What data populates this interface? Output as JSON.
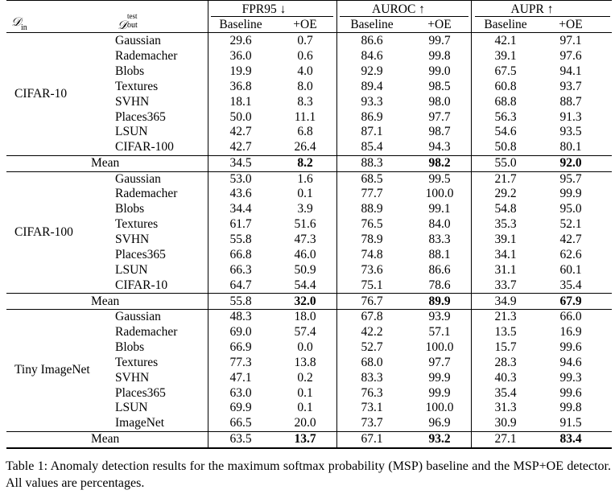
{
  "header": {
    "din_symbol": "𝒟",
    "din_sub": "in",
    "dout_symbol": "𝒟",
    "dout_sup": "test",
    "dout_sub": "out",
    "metrics": [
      {
        "label": "FPR95 ↓"
      },
      {
        "label": "AUROC ↑"
      },
      {
        "label": "AUPR ↑"
      }
    ],
    "sub_labels": [
      "Baseline",
      "+OE"
    ]
  },
  "blocks": [
    {
      "dataset": "CIFAR-10",
      "rows": [
        {
          "name": "Gaussian",
          "values": [
            "29.6",
            "0.7",
            "86.6",
            "99.7",
            "42.1",
            "97.1"
          ]
        },
        {
          "name": "Rademacher",
          "values": [
            "36.0",
            "0.6",
            "84.6",
            "99.8",
            "39.1",
            "97.6"
          ]
        },
        {
          "name": "Blobs",
          "values": [
            "19.9",
            "4.0",
            "92.9",
            "99.0",
            "67.5",
            "94.1"
          ]
        },
        {
          "name": "Textures",
          "values": [
            "36.8",
            "8.0",
            "89.4",
            "98.5",
            "60.8",
            "93.7"
          ]
        },
        {
          "name": "SVHN",
          "values": [
            "18.1",
            "8.3",
            "93.3",
            "98.0",
            "68.8",
            "88.7"
          ]
        },
        {
          "name": "Places365",
          "values": [
            "50.0",
            "11.1",
            "86.9",
            "97.7",
            "56.3",
            "91.3"
          ]
        },
        {
          "name": "LSUN",
          "values": [
            "42.7",
            "6.8",
            "87.1",
            "98.7",
            "54.6",
            "93.5"
          ]
        },
        {
          "name": "CIFAR-100",
          "values": [
            "42.7",
            "26.4",
            "85.4",
            "94.3",
            "50.8",
            "80.1"
          ]
        }
      ],
      "mean": {
        "label": "Mean",
        "values": [
          "34.5",
          "8.2",
          "88.3",
          "98.2",
          "55.0",
          "92.0"
        ]
      }
    },
    {
      "dataset": "CIFAR-100",
      "rows": [
        {
          "name": "Gaussian",
          "values": [
            "53.0",
            "1.6",
            "68.5",
            "99.5",
            "21.7",
            "95.7"
          ]
        },
        {
          "name": "Rademacher",
          "values": [
            "43.6",
            "0.1",
            "77.7",
            "100.0",
            "29.2",
            "99.9"
          ]
        },
        {
          "name": "Blobs",
          "values": [
            "34.4",
            "3.9",
            "88.9",
            "99.1",
            "54.8",
            "95.0"
          ]
        },
        {
          "name": "Textures",
          "values": [
            "61.7",
            "51.6",
            "76.5",
            "84.0",
            "35.3",
            "52.1"
          ]
        },
        {
          "name": "SVHN",
          "values": [
            "55.8",
            "47.3",
            "78.9",
            "83.3",
            "39.1",
            "42.7"
          ]
        },
        {
          "name": "Places365",
          "values": [
            "66.8",
            "46.0",
            "74.8",
            "88.1",
            "34.1",
            "62.6"
          ]
        },
        {
          "name": "LSUN",
          "values": [
            "66.3",
            "50.9",
            "73.6",
            "86.6",
            "31.1",
            "60.1"
          ]
        },
        {
          "name": "CIFAR-10",
          "values": [
            "64.7",
            "54.4",
            "75.1",
            "78.6",
            "33.7",
            "35.4"
          ]
        }
      ],
      "mean": {
        "label": "Mean",
        "values": [
          "55.8",
          "32.0",
          "76.7",
          "89.9",
          "34.9",
          "67.9"
        ]
      }
    },
    {
      "dataset": "Tiny ImageNet",
      "rows": [
        {
          "name": "Gaussian",
          "values": [
            "48.3",
            "18.0",
            "67.8",
            "93.9",
            "21.3",
            "66.0"
          ]
        },
        {
          "name": "Rademacher",
          "values": [
            "69.0",
            "57.4",
            "42.2",
            "57.1",
            "13.5",
            "16.9"
          ]
        },
        {
          "name": "Blobs",
          "values": [
            "66.9",
            "0.0",
            "52.7",
            "100.0",
            "15.7",
            "99.6"
          ]
        },
        {
          "name": "Textures",
          "values": [
            "77.3",
            "13.8",
            "68.0",
            "97.7",
            "28.3",
            "94.6"
          ]
        },
        {
          "name": "SVHN",
          "values": [
            "47.1",
            "0.2",
            "83.3",
            "99.9",
            "40.3",
            "99.3"
          ]
        },
        {
          "name": "Places365",
          "values": [
            "63.0",
            "0.1",
            "76.3",
            "99.9",
            "35.4",
            "99.6"
          ]
        },
        {
          "name": "LSUN",
          "values": [
            "69.9",
            "0.1",
            "73.1",
            "100.0",
            "31.3",
            "99.8"
          ]
        },
        {
          "name": "ImageNet",
          "values": [
            "66.5",
            "20.0",
            "73.7",
            "96.9",
            "30.9",
            "91.5"
          ]
        }
      ],
      "mean": {
        "label": "Mean",
        "values": [
          "63.5",
          "13.7",
          "67.1",
          "93.2",
          "27.1",
          "83.4"
        ]
      }
    }
  ],
  "caption": "Table 1: Anomaly detection results for the maximum softmax probability (MSP) baseline and the MSP+OE detector. All values are percentages."
}
